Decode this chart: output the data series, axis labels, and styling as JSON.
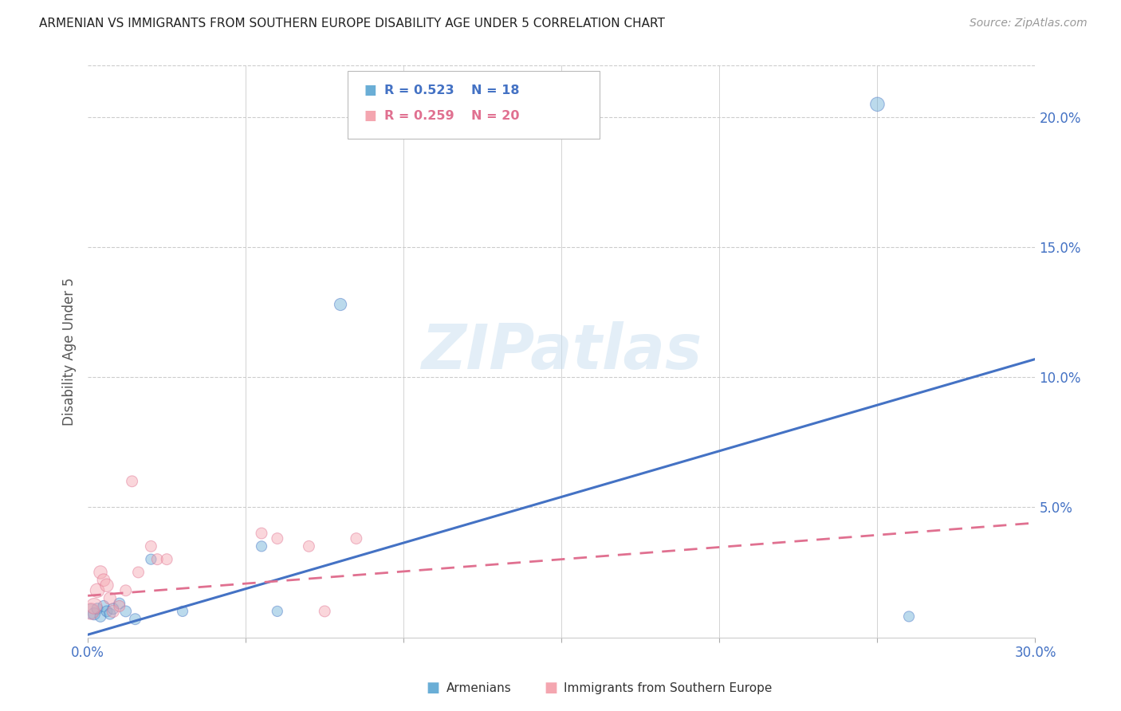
{
  "title": "ARMENIAN VS IMMIGRANTS FROM SOUTHERN EUROPE DISABILITY AGE UNDER 5 CORRELATION CHART",
  "source": "Source: ZipAtlas.com",
  "ylabel": "Disability Age Under 5",
  "xlim": [
    0.0,
    0.3
  ],
  "ylim": [
    0.0,
    0.22
  ],
  "yticks_right": [
    0.05,
    0.1,
    0.15,
    0.2
  ],
  "ytick_labels_right": [
    "5.0%",
    "10.0%",
    "15.0%",
    "20.0%"
  ],
  "armenian_color": "#6aaed6",
  "armenian_edge_color": "#4472c4",
  "immigrant_color": "#f4a6b0",
  "immigrant_edge_color": "#e07090",
  "armenian_R": 0.523,
  "armenian_N": 18,
  "immigrant_R": 0.259,
  "immigrant_N": 20,
  "blue_line_x0": 0.0,
  "blue_line_y0": 0.001,
  "blue_line_x1": 0.3,
  "blue_line_y1": 0.107,
  "pink_line_x0": 0.0,
  "pink_line_y0": 0.016,
  "pink_line_x1": 0.3,
  "pink_line_y1": 0.044,
  "armenian_x": [
    0.001,
    0.002,
    0.003,
    0.004,
    0.005,
    0.006,
    0.007,
    0.008,
    0.01,
    0.012,
    0.015,
    0.02,
    0.03,
    0.055,
    0.06,
    0.08,
    0.25,
    0.26
  ],
  "armenian_y": [
    0.01,
    0.009,
    0.011,
    0.008,
    0.012,
    0.01,
    0.009,
    0.011,
    0.013,
    0.01,
    0.007,
    0.03,
    0.01,
    0.035,
    0.01,
    0.128,
    0.205,
    0.008
  ],
  "armenian_sizes": [
    180,
    120,
    100,
    100,
    100,
    100,
    100,
    100,
    100,
    100,
    100,
    90,
    90,
    90,
    90,
    120,
    160,
    90
  ],
  "immigrant_x": [
    0.001,
    0.002,
    0.003,
    0.004,
    0.005,
    0.006,
    0.007,
    0.008,
    0.01,
    0.012,
    0.014,
    0.016,
    0.02,
    0.022,
    0.025,
    0.055,
    0.06,
    0.07,
    0.075,
    0.085
  ],
  "immigrant_y": [
    0.01,
    0.012,
    0.018,
    0.025,
    0.022,
    0.02,
    0.015,
    0.01,
    0.012,
    0.018,
    0.06,
    0.025,
    0.035,
    0.03,
    0.03,
    0.04,
    0.038,
    0.035,
    0.01,
    0.038
  ],
  "immigrant_sizes": [
    220,
    200,
    160,
    140,
    130,
    140,
    120,
    120,
    100,
    100,
    100,
    100,
    100,
    100,
    100,
    100,
    100,
    100,
    100,
    100
  ],
  "watermark": "ZIPatlas",
  "background_color": "#ffffff",
  "grid_color": "#cccccc"
}
